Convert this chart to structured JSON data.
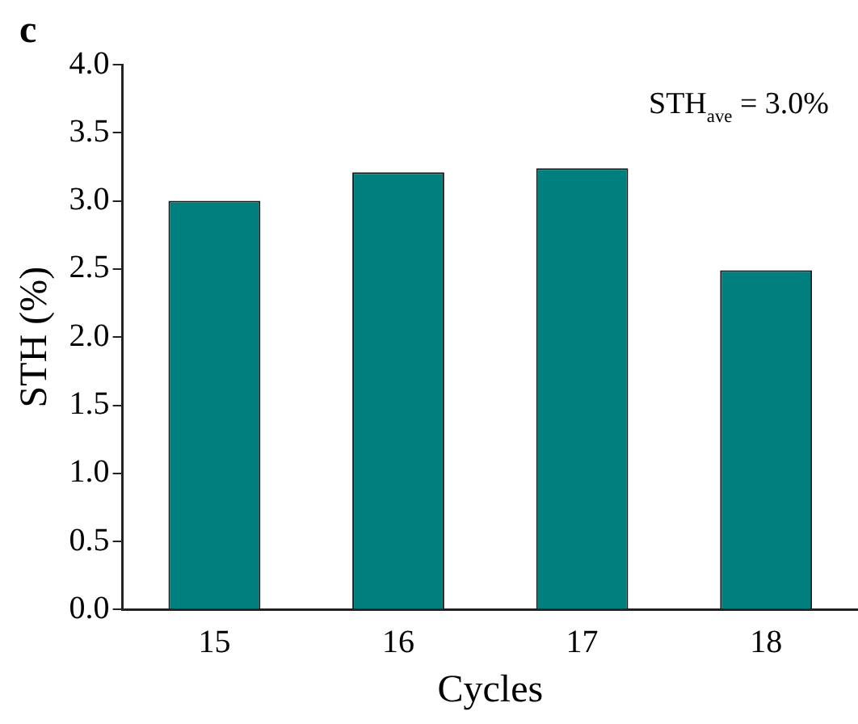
{
  "chart_data": {
    "type": "bar",
    "xlabel": "Cycles",
    "ylabel": "STH (%)",
    "categories": [
      "15",
      "16",
      "17",
      "18"
    ],
    "values": [
      3.0,
      3.21,
      3.24,
      2.49
    ],
    "color": "#007f7f",
    "ylim": [
      0,
      4
    ],
    "yticks": [
      {
        "value": 0,
        "label": "0.0"
      },
      {
        "value": 0.5,
        "label": "0.5"
      },
      {
        "value": 1,
        "label": "1.0"
      },
      {
        "value": 1.5,
        "label": "1.5"
      },
      {
        "value": 2,
        "label": "2.0"
      },
      {
        "value": 2.5,
        "label": "2.5"
      },
      {
        "value": 3,
        "label": "3.0"
      },
      {
        "value": 3.5,
        "label": "3.5"
      },
      {
        "value": 4,
        "label": "4.0"
      }
    ],
    "grid": false,
    "legend": false,
    "annotations": [
      "c",
      "STH$_{ave}$ = 3.0%"
    ]
  }
}
